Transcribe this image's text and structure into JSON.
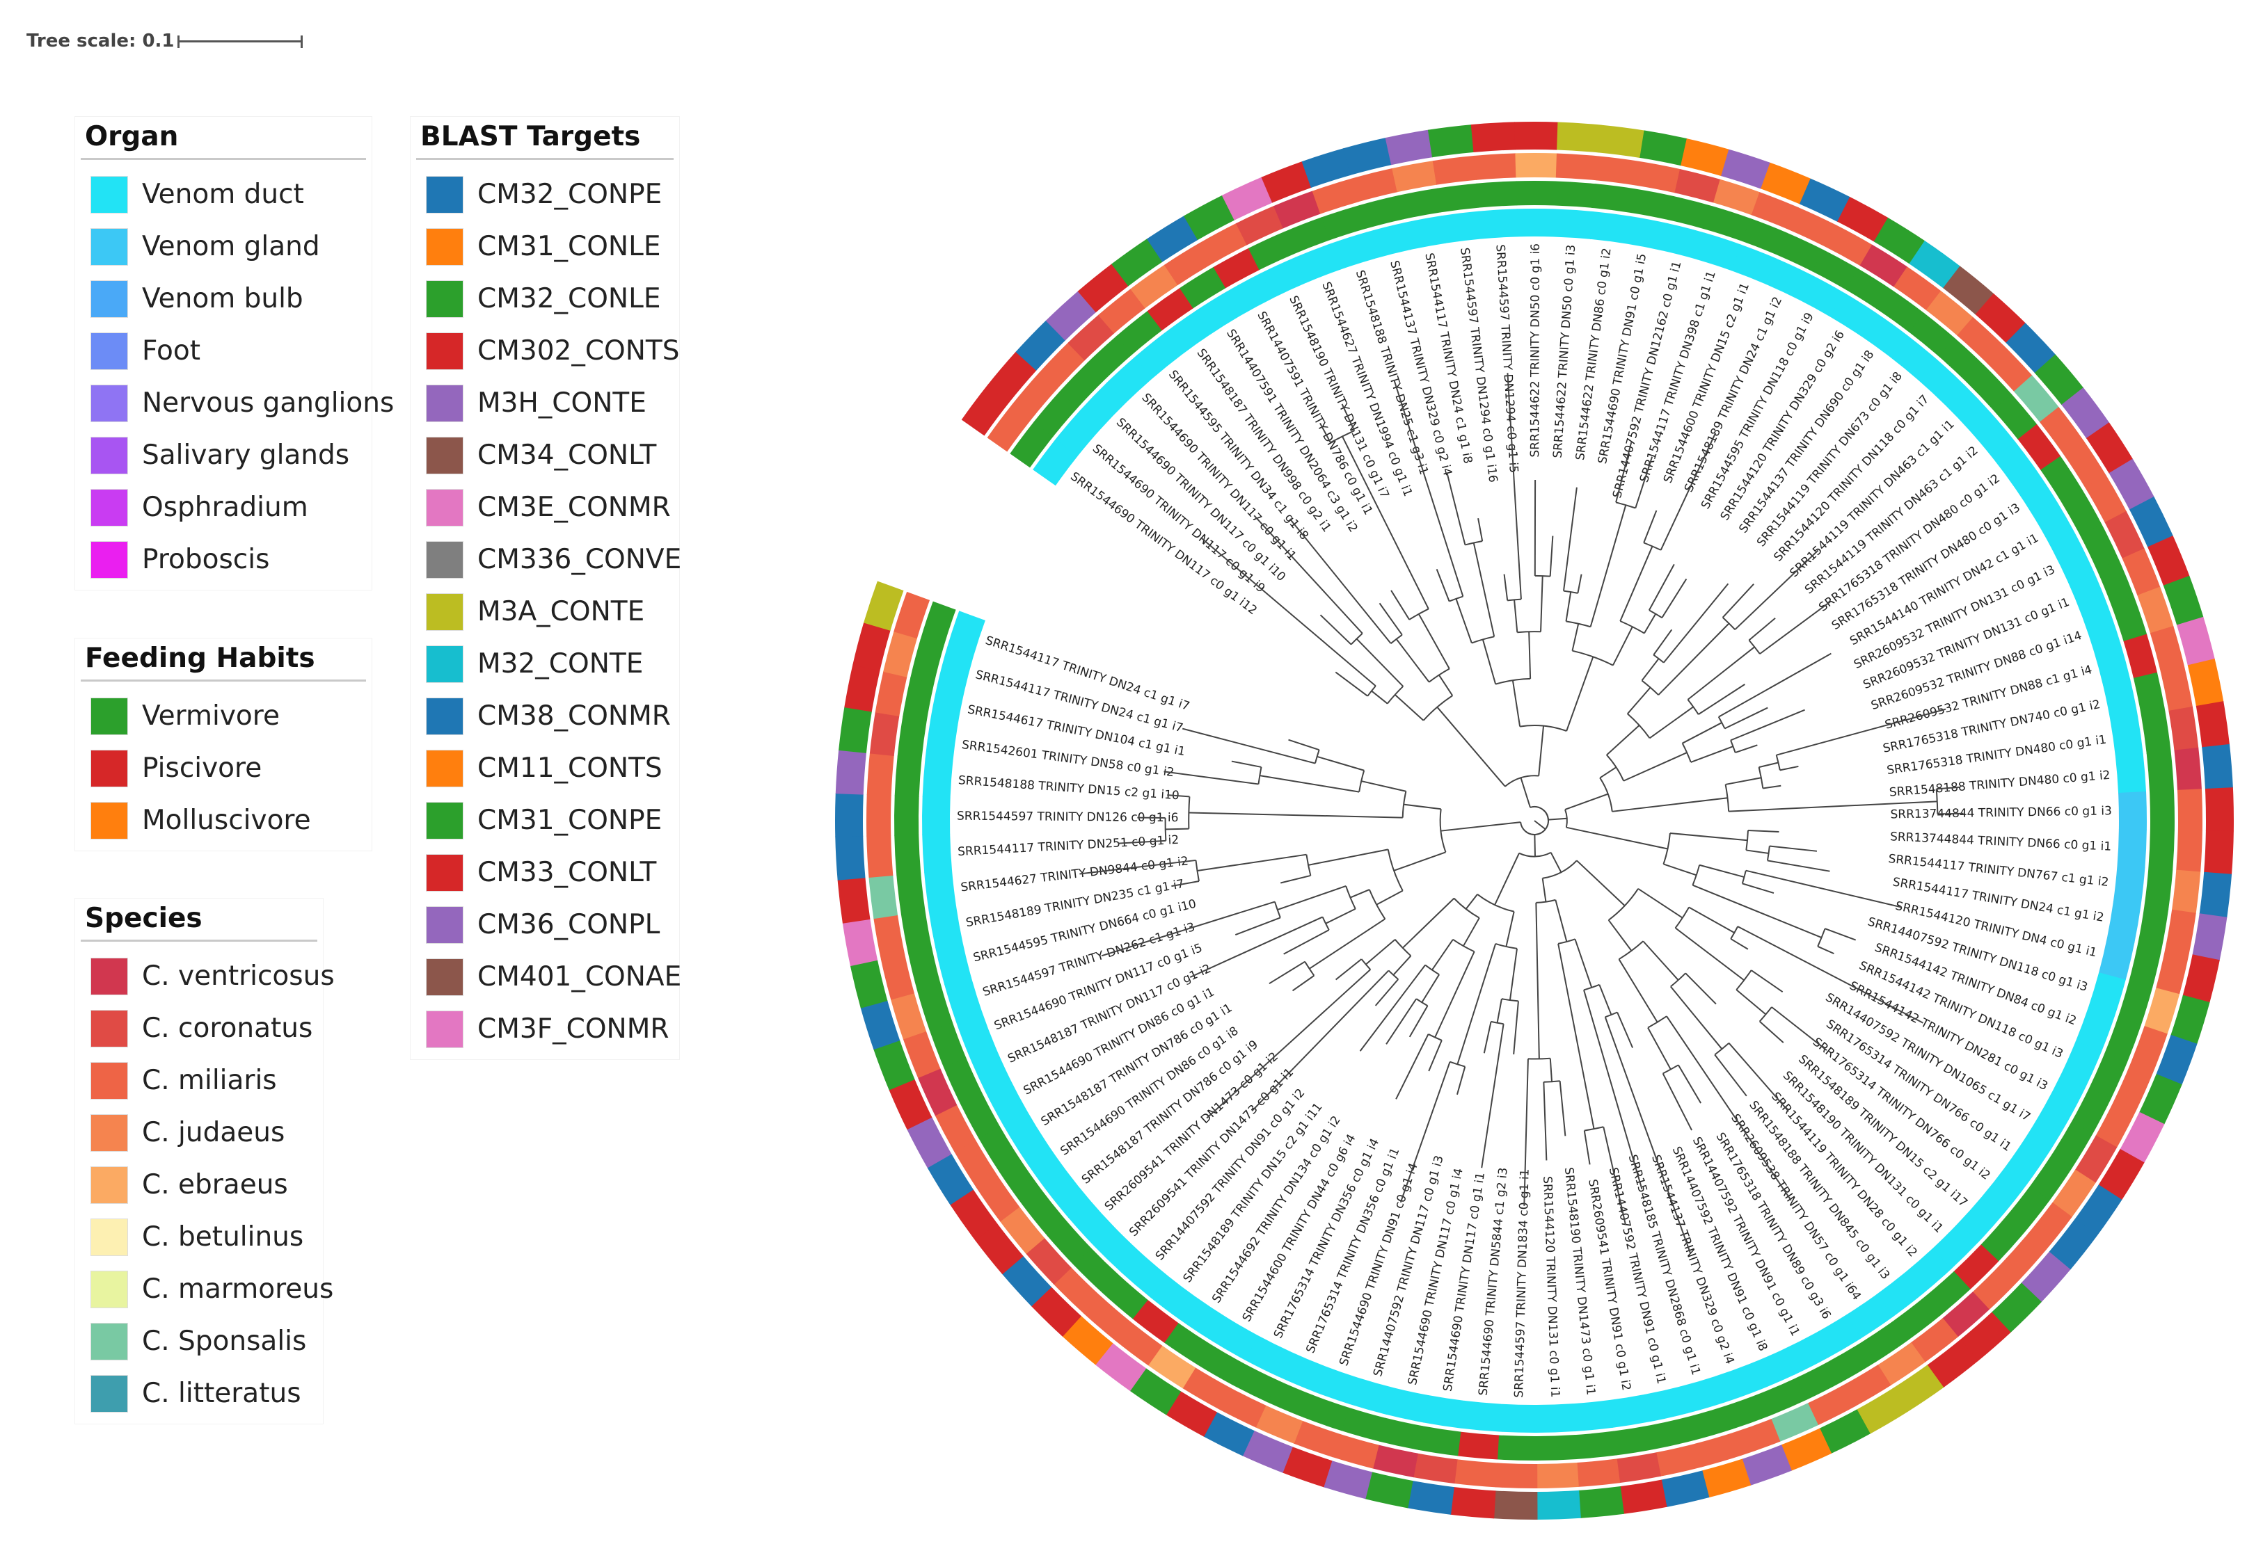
{
  "tree_scale": {
    "label": "Tree scale: 0.1"
  },
  "legends": {
    "organ": {
      "title": "Organ",
      "items": [
        {
          "label": "Venom duct",
          "color": "#22e3f5"
        },
        {
          "label": "Venom gland",
          "color": "#3cc8f5"
        },
        {
          "label": "Venom bulb",
          "color": "#4aa9f7"
        },
        {
          "label": "Foot",
          "color": "#6c8cf6"
        },
        {
          "label": "Nervous ganglions",
          "color": "#8f74f3"
        },
        {
          "label": "Salivary glands",
          "color": "#a855f2"
        },
        {
          "label": "Osphradium",
          "color": "#c93cf2"
        },
        {
          "label": "Proboscis",
          "color": "#ea1ff0"
        }
      ]
    },
    "feeding": {
      "title": "Feeding Habits",
      "items": [
        {
          "label": "Vermivore",
          "color": "#2ca02c"
        },
        {
          "label": "Piscivore",
          "color": "#d62728"
        },
        {
          "label": "Molluscivore",
          "color": "#ff7f0e"
        }
      ]
    },
    "species": {
      "title": "Species",
      "items": [
        {
          "label": "C. ventricosus",
          "color": "#d1374f"
        },
        {
          "label": "C. coronatus",
          "color": "#e04b45"
        },
        {
          "label": "C. miliaris",
          "color": "#ee6446"
        },
        {
          "label": "C. judaeus",
          "color": "#f5844f"
        },
        {
          "label": "C. ebraeus",
          "color": "#fbaa63"
        },
        {
          "label": "C. betulinus",
          "color": "#fdf0b2"
        },
        {
          "label": "C. marmoreus",
          "color": "#e8f4a0"
        },
        {
          "label": "C. Sponsalis",
          "color": "#79c9a3"
        },
        {
          "label": "C. litteratus",
          "color": "#3e9eae"
        }
      ]
    },
    "blast": {
      "title": "BLAST Targets",
      "items": [
        {
          "label": "CM32_CONPE",
          "color": "#1f77b4"
        },
        {
          "label": "CM31_CONLE",
          "color": "#ff7f0e"
        },
        {
          "label": "CM32_CONLE",
          "color": "#2ca02c"
        },
        {
          "label": "CM302_CONTS",
          "color": "#d62728"
        },
        {
          "label": "M3H_CONTE",
          "color": "#9467bd"
        },
        {
          "label": "CM34_CONLT",
          "color": "#8c564b"
        },
        {
          "label": "CM3E_CONMR",
          "color": "#e377c2"
        },
        {
          "label": "CM336_CONVE",
          "color": "#7f7f7f"
        },
        {
          "label": "M3A_CONTE",
          "color": "#bcbd22"
        },
        {
          "label": "M32_CONTE",
          "color": "#17becf"
        },
        {
          "label": "CM38_CONMR",
          "color": "#1f77b4"
        },
        {
          "label": "CM11_CONTS",
          "color": "#ff7f0e"
        },
        {
          "label": "CM31_CONPE",
          "color": "#2ca02c"
        },
        {
          "label": "CM33_CONLT",
          "color": "#d62728"
        },
        {
          "label": "CM36_CONPL",
          "color": "#9467bd"
        },
        {
          "label": "CM401_CONAE",
          "color": "#8c564b"
        },
        {
          "label": "CM3F_CONMR",
          "color": "#e377c2"
        }
      ]
    }
  },
  "leaves": [
    "SRR1544690 TRINITY DN117 c0 g1 i12",
    "SRR1544690 TRINITY DN117 c0 g1 i9",
    "SRR1544690 TRINITY DN117 c0 g1 i10",
    "SRR1544690 TRINITY DN117 c0 g1 i1",
    "SRR1544595 TRINITY DN34 c1 g1 i8",
    "SRR1548187 TRINITY DN998 c0 g2 i1",
    "SRR14407591 TRINITY DN2064 c3 g1 i2",
    "SRR14407591 TRINITY DN786 c0 g1 i1",
    "SRR1548190 TRINITY DN131 c0 g1 i7",
    "SRR1544627 TRINITY DN1994 c0 g1 i1",
    "SRR1548188 TRINITY DN25 c1 g3 i1",
    "SRR1544137 TRINITY DN329 c0 g2 i4",
    "SRR1544117 TRINITY DN24 c1 g1 i8",
    "SRR1544597 TRINITY DN1294 c0 g1 i16",
    "SRR1544597 TRINITY DN1294 c0 g1 i5",
    "SRR1544622 TRINITY DN50 c0 g1 i6",
    "SRR1544622 TRINITY DN50 c0 g1 i3",
    "SRR1544622 TRINITY DN86 c0 g1 i2",
    "SRR1544690 TRINITY DN91 c0 g1 i5",
    "SRR14407592 TRINITY DN12162 c0 g1 i1",
    "SRR1544117 TRINITY DN398 c1 g1 i1",
    "SRR1544600 TRINITY DN15 c2 g1 i1",
    "SRR1548189 TRINITY DN24 c1 g1 i2",
    "SRR1544595 TRINITY DN118 c0 g1 i9",
    "SRR1544120 TRINITY DN329 c0 g2 i6",
    "SRR1544137 TRINITY DN690 c0 g1 i8",
    "SRR1544119 TRINITY DN673 c0 g1 i8",
    "SRR1544120 TRINITY DN118 c0 g1 i7",
    "SRR1544119 TRINITY DN463 c1 g1 i1",
    "SRR1544119 TRINITY DN463 c1 g1 i2",
    "SRR1765318 TRINITY DN480 c0 g1 i2",
    "SRR1765318 TRINITY DN480 c0 g1 i3",
    "SRR1544140 TRINITY DN42 c1 g1 i1",
    "SRR2609532 TRINITY DN131 c0 g1 i3",
    "SRR2609532 TRINITY DN131 c0 g1 i1",
    "SRR2609532 TRINITY DN88 c0 g1 i14",
    "SRR2609532 TRINITY DN88 c1 g1 i4",
    "SRR1765318 TRINITY DN740 c0 g1 i2",
    "SRR1765318 TRINITY DN480 c0 g1 i1",
    "SRR1548188 TRINITY DN480 c0 g1 i2",
    "SRR13744844 TRINITY DN66 c0 g1 i3",
    "SRR13744844 TRINITY DN66 c0 g1 i1",
    "SRR1544117 TRINITY DN767 c1 g1 i2",
    "SRR1544117 TRINITY DN24 c1 g1 i2",
    "SRR1544120 TRINITY DN4 c0 g1 i1",
    "SRR14407592 TRINITY DN118 c0 g1 i3",
    "SRR1544142 TRINITY DN84 c0 g1 i2",
    "SRR1544142 TRINITY DN118 c0 g1 i3",
    "SRR1544142 TRINITY DN281 c0 g1 i3",
    "SRR14407592 TRINITY DN1065 c1 g1 i7",
    "SRR1765314 TRINITY DN766 c0 g1 i1",
    "SRR1765314 TRINITY DN766 c0 g1 i2",
    "SRR1548189 TRINITY DN15 c2 g1 i17",
    "SRR1548190 TRINITY DN131 c0 g1 i1",
    "SRR1544119 TRINITY DN28 c0 g1 i2",
    "SRR1548188 TRINITY DN845 c0 g1 i3",
    "SRR2609538 TRINITY DN57 c0 g1 i64",
    "SRR1765318 TRINITY DN89 c0 g3 i6",
    "SRR14407592 TRINITY DN91 c0 g1 i1",
    "SRR14407592 TRINITY DN91 c0 g1 i8",
    "SRR1544137 TRINITY DN329 c0 g2 i4",
    "SRR1548185 TRINITY DN2868 c0 g1 i1",
    "SRR14407592 TRINITY DN91 c0 g1 i1",
    "SRR2609541 TRINITY DN91 c0 g1 i2",
    "SRR1548190 TRINITY DN1473 c0 g1 i1",
    "SRR1544120 TRINITY DN131 c0 g1 i1",
    "SRR1544597 TRINITY DN1834 c0 g1 i1",
    "SRR1544690 TRINITY DN5844 c1 g2 i3",
    "SRR1544690 TRINITY DN117 c0 g1 i1",
    "SRR1544690 TRINITY DN117 c0 g1 i4",
    "SRR14407592 TRINITY DN117 c0 g1 i3",
    "SRR1544690 TRINITY DN91 c0 g1 i4",
    "SRR1765314 TRINITY DN356 c0 g1 i1",
    "SRR1765314 TRINITY DN356 c0 g1 i4",
    "SRR1544600 TRINITY DN44 c0 g6 i4",
    "SRR1544692 TRINITY DN134 c0 g1 i2",
    "SRR1548189 TRINITY DN15 c2 g1 i11",
    "SRR14407592 TRINITY DN91 c0 g1 i2",
    "SRR2609541 TRINITY DN1473 c0 g1 i1",
    "SRR2609541 TRINITY DN1473 c0 g1 i2",
    "SRR1548187 TRINITY DN786 c0 g1 i9",
    "SRR1544690 TRINITY DN86 c0 g1 i8",
    "SRR1548187 TRINITY DN786 c0 g1 i1",
    "SRR1544690 TRINITY DN86 c0 g1 i1",
    "SRR1548187 TRINITY DN117 c0 g1 i2",
    "SRR1544690 TRINITY DN117 c0 g1 i5",
    "SRR1544597 TRINITY DN262 c1 g1 i3",
    "SRR1544595 TRINITY DN664 c0 g1 i10",
    "SRR1548189 TRINITY DN235 c1 g1 i7",
    "SRR1544627 TRINITY DN9844 c0 g1 i2",
    "SRR1544117 TRINITY DN251 c0 g1 i2",
    "SRR1544597 TRINITY DN126 c0 g1 i6",
    "SRR1548188 TRINITY DN15 c2 g1 i10",
    "SRR1542601 TRINITY DN58 c0 g1 i2",
    "SRR1544617 TRINITY DN104 c1 g1 i1",
    "SRR1544117 TRINITY DN24 c1 g1 i7",
    "SRR1544117 TRINITY DN24 c1 g1 i7"
  ]
}
